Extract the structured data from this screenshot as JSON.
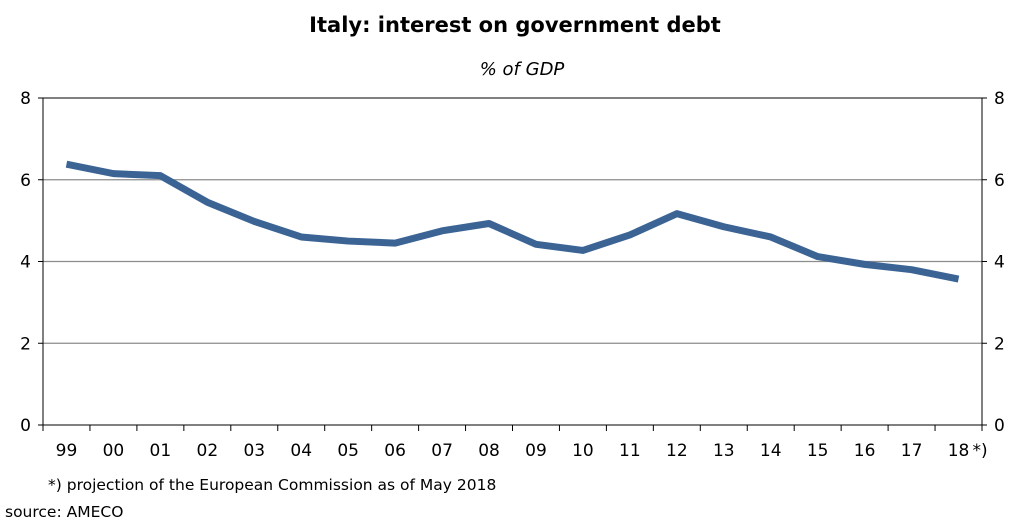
{
  "chart_data": {
    "type": "line",
    "title": "Italy: interest on government debt",
    "subtitle": "% of GDP",
    "categories": [
      "99",
      "00",
      "01",
      "02",
      "03",
      "04",
      "05",
      "06",
      "07",
      "08",
      "09",
      "10",
      "11",
      "12",
      "13",
      "14",
      "15",
      "16",
      "17",
      "18"
    ],
    "x_suffix_last": "*)",
    "series": [
      {
        "values": [
          6.38,
          6.15,
          6.1,
          5.45,
          4.98,
          4.6,
          4.5,
          4.45,
          4.75,
          4.93,
          4.42,
          4.27,
          4.65,
          5.17,
          4.85,
          4.6,
          4.12,
          3.93,
          3.8,
          3.57
        ],
        "color": "#3b6495"
      }
    ],
    "ylim": [
      0,
      8
    ],
    "yticks": [
      0,
      2,
      4,
      6,
      8
    ],
    "grid": true,
    "legend": "none"
  },
  "footnotes": {
    "projection": "*) projection of the European Commission as of May 2018",
    "source": "source: AMECO"
  },
  "colors": {
    "line": "#3b6495",
    "grid": "#8c8c8c",
    "axis": "#000000"
  }
}
